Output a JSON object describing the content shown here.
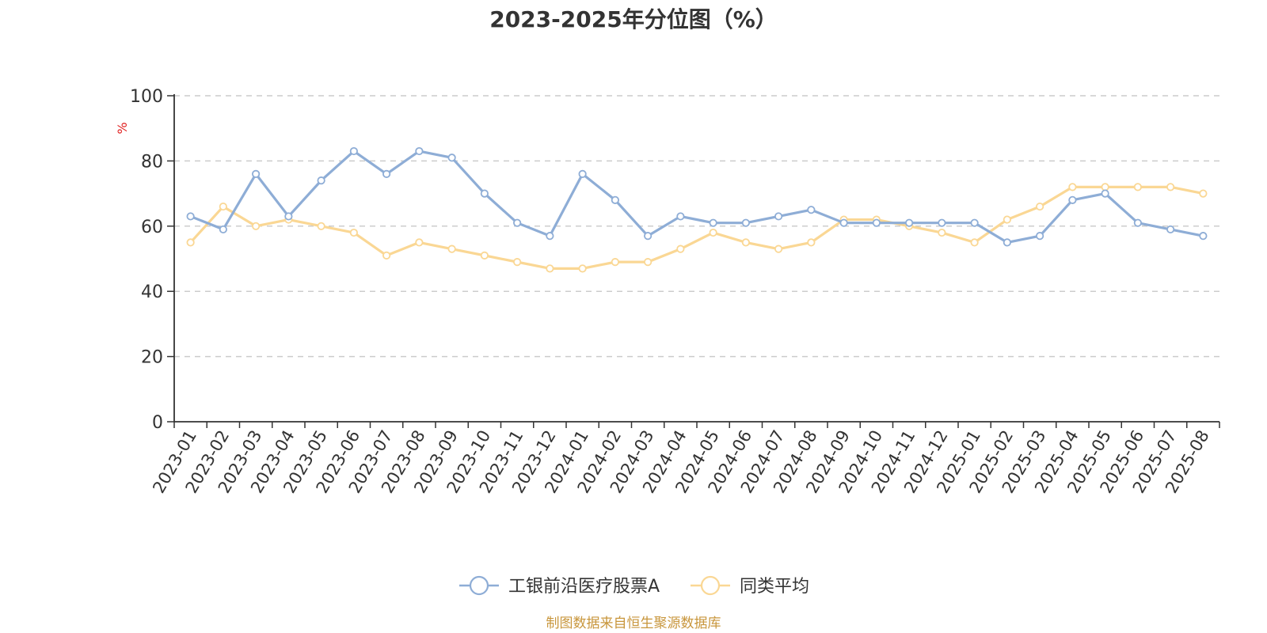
{
  "chart_data": {
    "type": "line",
    "title": "2023-2025年分位图（%）",
    "ylabel": "%",
    "ylim": [
      0,
      100
    ],
    "yticks": [
      "0",
      "20",
      "40",
      "60",
      "80",
      "100"
    ],
    "grid": true,
    "legend_position": "bottom-center",
    "categories": [
      "2023-01",
      "2023-02",
      "2023-03",
      "2023-04",
      "2023-05",
      "2023-06",
      "2023-07",
      "2023-08",
      "2023-09",
      "2023-10",
      "2023-11",
      "2023-12",
      "2024-01",
      "2024-02",
      "2024-03",
      "2024-04",
      "2024-05",
      "2024-06",
      "2024-07",
      "2024-08",
      "2024-09",
      "2024-10",
      "2024-11",
      "2024-12",
      "2025-01",
      "2025-02",
      "2025-03",
      "2025-04",
      "2025-05",
      "2025-06",
      "2025-07",
      "2025-08"
    ],
    "series": [
      {
        "name": "工银前沿医疗股票A",
        "color": "#8eadd6",
        "values": [
          63,
          59,
          76,
          63,
          74,
          83,
          76,
          83,
          81,
          70,
          61,
          57,
          76,
          68,
          57,
          63,
          61,
          61,
          63,
          65,
          61,
          61,
          61,
          61,
          61,
          55,
          57,
          68,
          70,
          61,
          59,
          57
        ]
      },
      {
        "name": "同类平均",
        "color": "#fad794",
        "values": [
          55,
          66,
          60,
          62,
          60,
          58,
          51,
          55,
          53,
          51,
          49,
          47,
          47,
          49,
          49,
          53,
          58,
          55,
          53,
          55,
          62,
          62,
          60,
          58,
          55,
          62,
          66,
          72,
          72,
          72,
          72,
          70
        ]
      }
    ],
    "source": "制图数据来自恒生聚源数据库",
    "colors": {
      "axis": "#333333",
      "grid": "#cccccc",
      "unit": "#e02020",
      "source": "#c8963c"
    }
  }
}
